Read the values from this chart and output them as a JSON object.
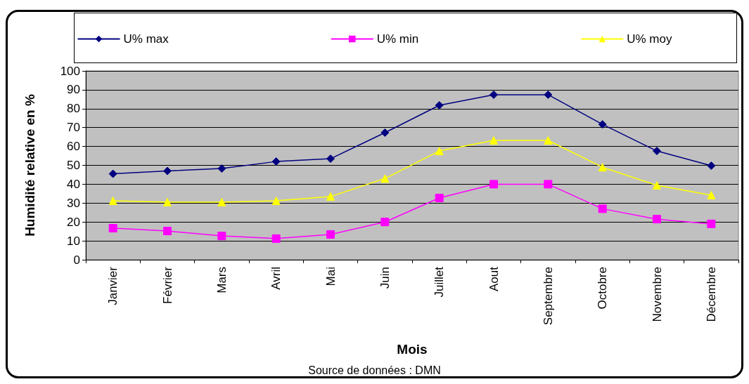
{
  "chart_data": {
    "type": "line",
    "xlabel": "Mois",
    "ylabel": "Humidité relative en %",
    "annotations": [
      "Source de données : DMN"
    ],
    "categories": [
      "Janvier",
      "Février",
      "Mars",
      "Avril",
      "Mai",
      "Juin",
      "Juillet",
      "Aout",
      "Septembre",
      "Octobre",
      "Novembre",
      "Décembre"
    ],
    "series": [
      {
        "name": "U% max",
        "color": "#000080",
        "marker": "diamond",
        "values": [
          45.5,
          47,
          48.3,
          52,
          53.5,
          67.3,
          81.8,
          87.4,
          87.4,
          71.7,
          57.6,
          49.8
        ]
      },
      {
        "name": "U% min",
        "color": "#ff00ff",
        "marker": "square",
        "values": [
          16.7,
          15.2,
          12.6,
          11.2,
          13.4,
          20,
          32.7,
          40,
          40,
          27,
          21.5,
          19
        ]
      },
      {
        "name": "U% moy",
        "color": "#ffff00",
        "marker": "triangle",
        "values": [
          31.2,
          30.5,
          30.5,
          31.2,
          33.5,
          43,
          57.6,
          63.2,
          63.2,
          49,
          39.4,
          34.2
        ]
      }
    ],
    "ylim": [
      0,
      100
    ],
    "yticks": [
      0,
      10,
      20,
      30,
      40,
      50,
      60,
      70,
      80,
      90,
      100
    ],
    "grid": "y",
    "legend": "top",
    "line_style": "solid"
  }
}
